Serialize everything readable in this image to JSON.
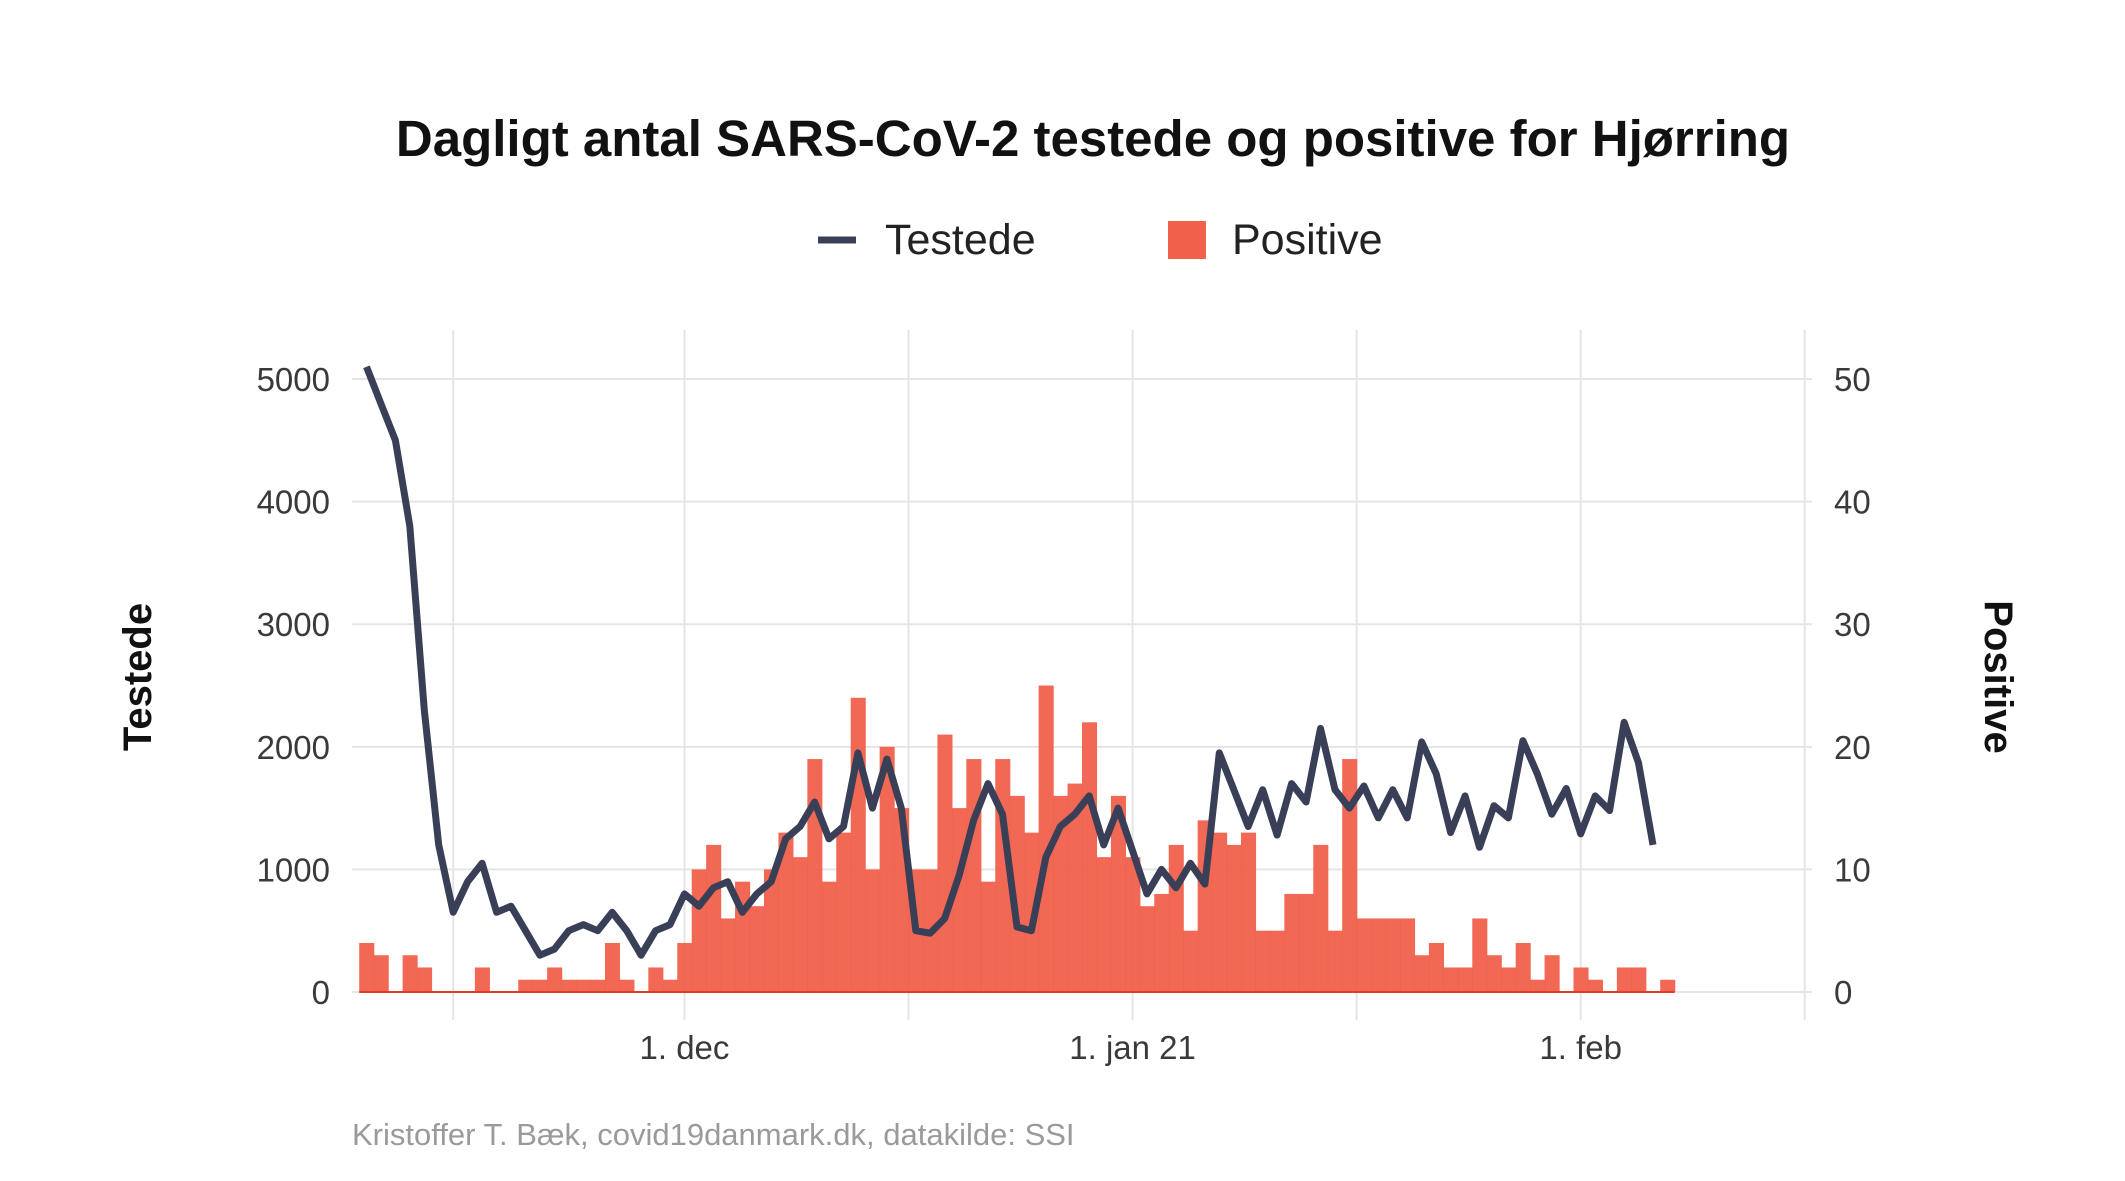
{
  "chart_data": {
    "type": "bar+line",
    "title": "Dagligt antal SARS-CoV-2 testede og positive for Hjørring",
    "legend": {
      "position": "top",
      "items": [
        {
          "label": "Testede",
          "kind": "line",
          "color": "#3a3f58"
        },
        {
          "label": "Positive",
          "kind": "bar",
          "color": "#f0604b"
        }
      ]
    },
    "ylabel_left": "Testede",
    "ylabel_right": "Positive",
    "ylim_left": [
      0,
      5400
    ],
    "ylim_right": [
      0,
      54
    ],
    "yticks_left": [
      "0",
      "1000",
      "2000",
      "3000",
      "4000",
      "5000"
    ],
    "yticks_right": [
      "0",
      "10",
      "20",
      "30",
      "40",
      "50"
    ],
    "xlim": [
      "2020-11-08",
      "2021-02-17"
    ],
    "x_ticks": [
      {
        "date": "2020-12-01",
        "label": "1. dec"
      },
      {
        "date": "2021-01-01",
        "label": "1. jan 21"
      },
      {
        "date": "2021-02-01",
        "label": "1. feb"
      }
    ],
    "x_start": "2020-11-09",
    "grid": true,
    "series": [
      {
        "name": "Testede",
        "type": "line",
        "color": "#3a3f58",
        "values": [
          5100,
          4800,
          4500,
          3800,
          2300,
          1200,
          650,
          900,
          1050,
          650,
          700,
          500,
          300,
          350,
          500,
          550,
          500,
          650,
          500,
          300,
          500,
          550,
          800,
          700,
          850,
          900,
          650,
          800,
          900,
          1250,
          1350,
          1550,
          1250,
          1350,
          1950,
          1500,
          1900,
          1500,
          500,
          480,
          600,
          950,
          1400,
          1700,
          1450,
          530,
          500,
          1100,
          1350,
          1450,
          1600,
          1200,
          1500,
          1150,
          800,
          1000,
          850,
          1050,
          880,
          1950,
          1650,
          1350,
          1650,
          1280,
          1700,
          1550,
          2150,
          1650,
          1500,
          1680,
          1420,
          1650,
          1420,
          2040,
          1780,
          1300,
          1600,
          1180,
          1520,
          1420,
          2050,
          1780,
          1450,
          1660,
          1290,
          1600,
          1480,
          2200,
          1870,
          1200
        ]
      },
      {
        "name": "Positive",
        "type": "bar",
        "color": "#f0604b",
        "values": [
          4,
          3,
          0,
          3,
          2,
          0,
          0,
          0,
          2,
          0,
          0,
          1,
          1,
          2,
          1,
          1,
          1,
          4,
          1,
          0,
          2,
          1,
          4,
          10,
          12,
          6,
          9,
          7,
          10,
          13,
          11,
          19,
          9,
          13,
          24,
          10,
          20,
          15,
          10,
          10,
          21,
          15,
          19,
          9,
          19,
          16,
          13,
          25,
          16,
          17,
          22,
          11,
          16,
          11,
          7,
          8,
          12,
          5,
          14,
          13,
          12,
          13,
          5,
          5,
          8,
          8,
          12,
          5,
          19,
          6,
          6,
          6,
          6,
          3,
          4,
          2,
          2,
          6,
          3,
          2,
          4,
          1,
          3,
          0,
          2,
          1,
          0,
          2,
          2,
          0,
          1
        ]
      }
    ]
  },
  "caption": "Kristoffer T. Bæk, covid19danmark.dk, datakilde: SSI"
}
